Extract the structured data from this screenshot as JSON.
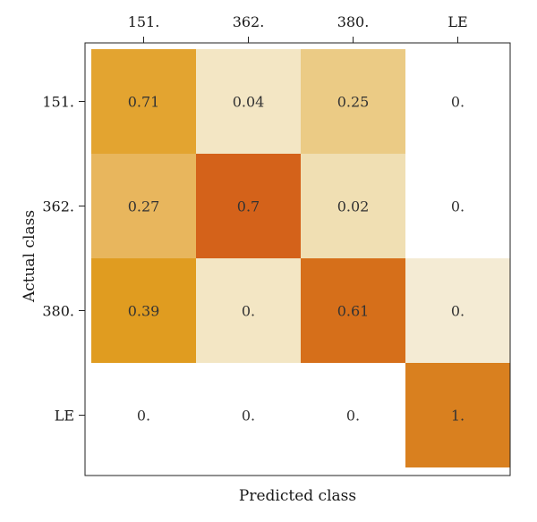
{
  "chart_data": {
    "type": "heatmap",
    "title": "",
    "xlabel": "Predicted class",
    "ylabel": "Actual class",
    "x_categories": [
      "151.",
      "362.",
      "380.",
      "LE"
    ],
    "y_categories": [
      "151.",
      "362.",
      "380.",
      "LE"
    ],
    "values": [
      [
        0.71,
        0.04,
        0.25,
        0
      ],
      [
        0.27,
        0.7,
        0.02,
        0
      ],
      [
        0.39,
        0,
        0.61,
        0
      ],
      [
        0,
        0,
        0,
        1
      ]
    ],
    "cell_labels": [
      [
        "0.71",
        "0.04",
        "0.25",
        "0."
      ],
      [
        "0.27",
        "0.7",
        "0.02",
        "0."
      ],
      [
        "0.39",
        "0.",
        "0.61",
        "0."
      ],
      [
        "0.",
        "0.",
        "0.",
        "1."
      ]
    ],
    "cell_colors": [
      [
        "#e3a430",
        "#f3e6c4",
        "#ebcb85",
        "#ffffff"
      ],
      [
        "#e8b65d",
        "#d4621a",
        "#f0dfb3",
        "#ffffff"
      ],
      [
        "#e09c20",
        "#f3e6c4",
        "#d66f1a",
        "#f4ebd4"
      ],
      [
        "#ffffff",
        "#ffffff",
        "#ffffff",
        "#d9801f"
      ]
    ],
    "x_axis_position": "top",
    "grid": false,
    "legend": "none"
  }
}
